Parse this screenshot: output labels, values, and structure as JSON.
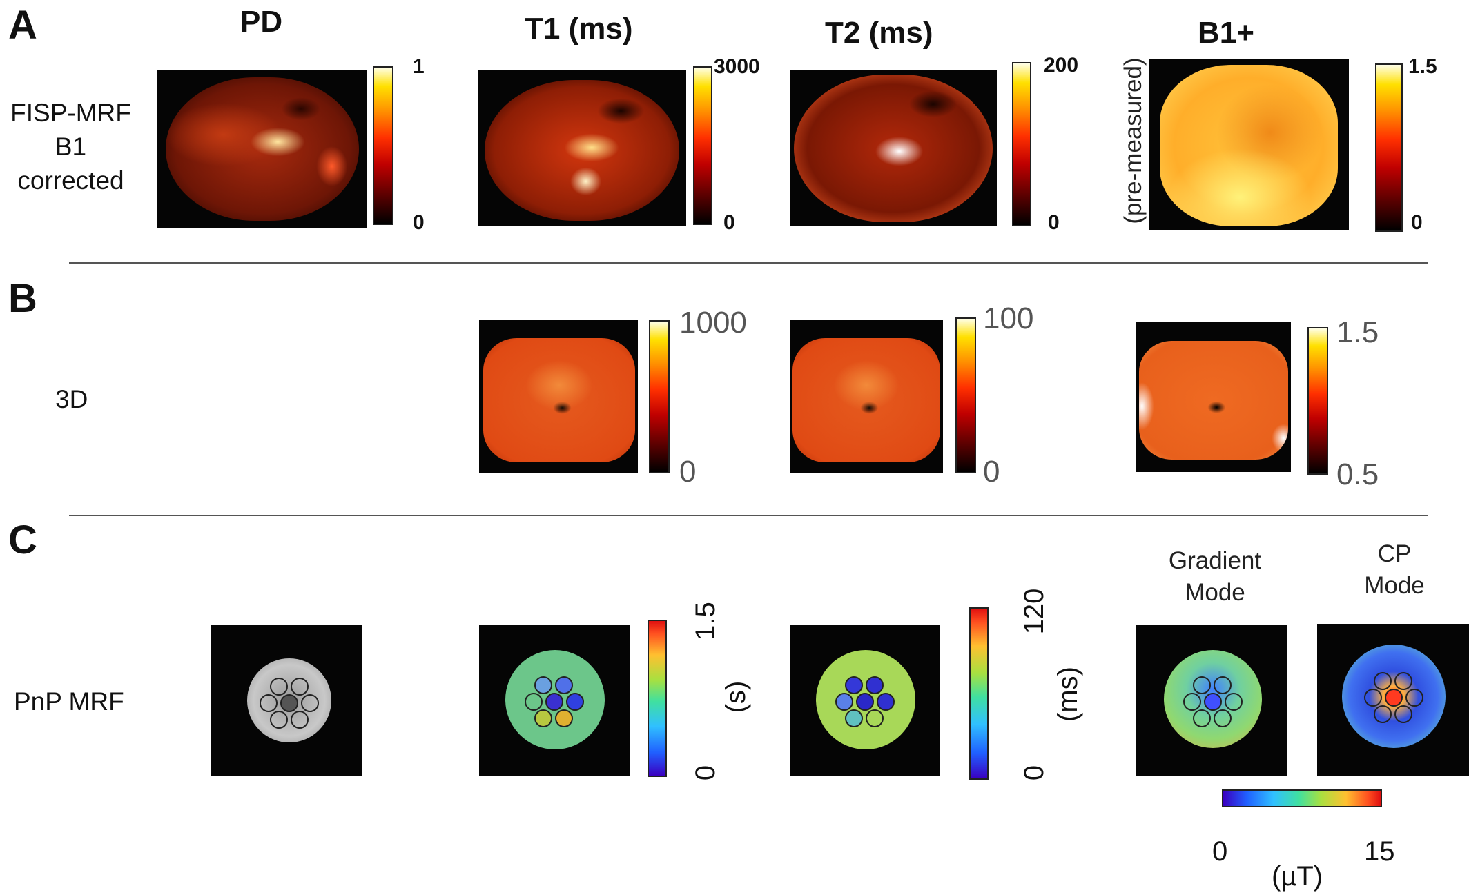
{
  "panels": {
    "a": {
      "letter": "A",
      "columns": {
        "pd": "PD",
        "t1": "T1 (ms)",
        "t2": "T2 (ms)",
        "b1": "B1+"
      },
      "row_label": [
        "FISP-MRF",
        "B1",
        "corrected"
      ],
      "b1_side_label": "(pre-measured)",
      "colorbars": {
        "pd": {
          "max": "1",
          "min": "0"
        },
        "t1": {
          "max": "3000",
          "min": "0"
        },
        "t2": {
          "max": "200",
          "min": "0"
        },
        "b1": {
          "max": "1.5",
          "min": "0"
        }
      }
    },
    "b": {
      "letter": "B",
      "row_label": "3D",
      "colorbars": {
        "t1": {
          "max": "1000",
          "min": "0"
        },
        "t2": {
          "max": "100",
          "min": "0"
        },
        "b1": {
          "max": "1.5",
          "min": "0.5"
        }
      }
    },
    "c": {
      "letter": "C",
      "row_label": "PnP MRF",
      "gradient_mode": [
        "Gradient",
        "Mode"
      ],
      "cp_mode": [
        "CP",
        "Mode"
      ],
      "colorbars": {
        "t1": {
          "max": "1.5",
          "min": "0",
          "unit": "(s)"
        },
        "t2": {
          "max": "120",
          "min": "0",
          "unit": "(ms)"
        },
        "b1": {
          "min": "0",
          "max": "15",
          "unit": "(µT)"
        }
      }
    }
  },
  "colors": {
    "heat_colormap": "black-red-yellow-white",
    "jet_colormap": "blue-cyan-green-yellow-red",
    "separator": "#555555"
  }
}
